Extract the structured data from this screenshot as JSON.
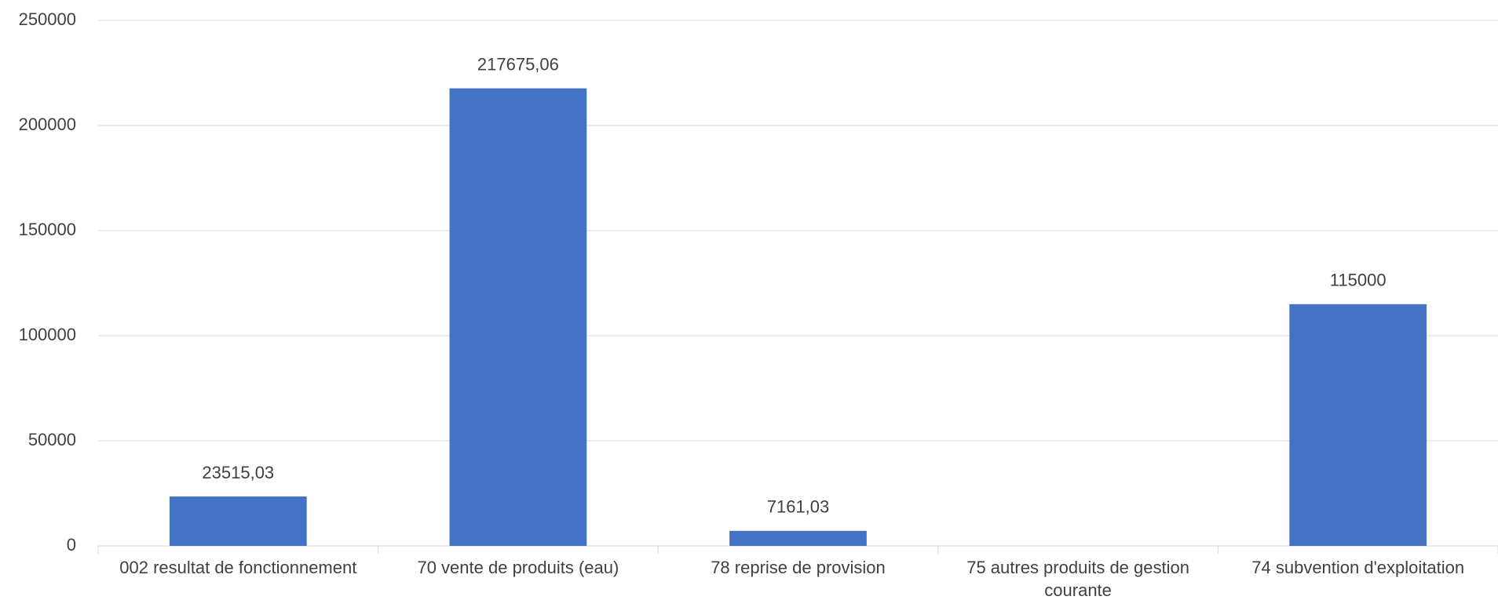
{
  "chart_data": {
    "type": "bar",
    "categories": [
      "002 resultat de fonctionnement",
      "70 vente de produits (eau)",
      "78 reprise de provision",
      "75 autres produits de gestion courante",
      "74 subvention d'exploitation"
    ],
    "values": [
      23515.03,
      217675.06,
      7161.03,
      null,
      115000
    ],
    "value_labels": [
      "23515,03",
      "217675,06",
      "7161,03",
      null,
      "115000"
    ],
    "color": "#4472c4",
    "ylim": [
      0,
      250000
    ],
    "yticks": [
      0,
      50000,
      100000,
      150000,
      200000,
      250000
    ],
    "grid": true
  }
}
